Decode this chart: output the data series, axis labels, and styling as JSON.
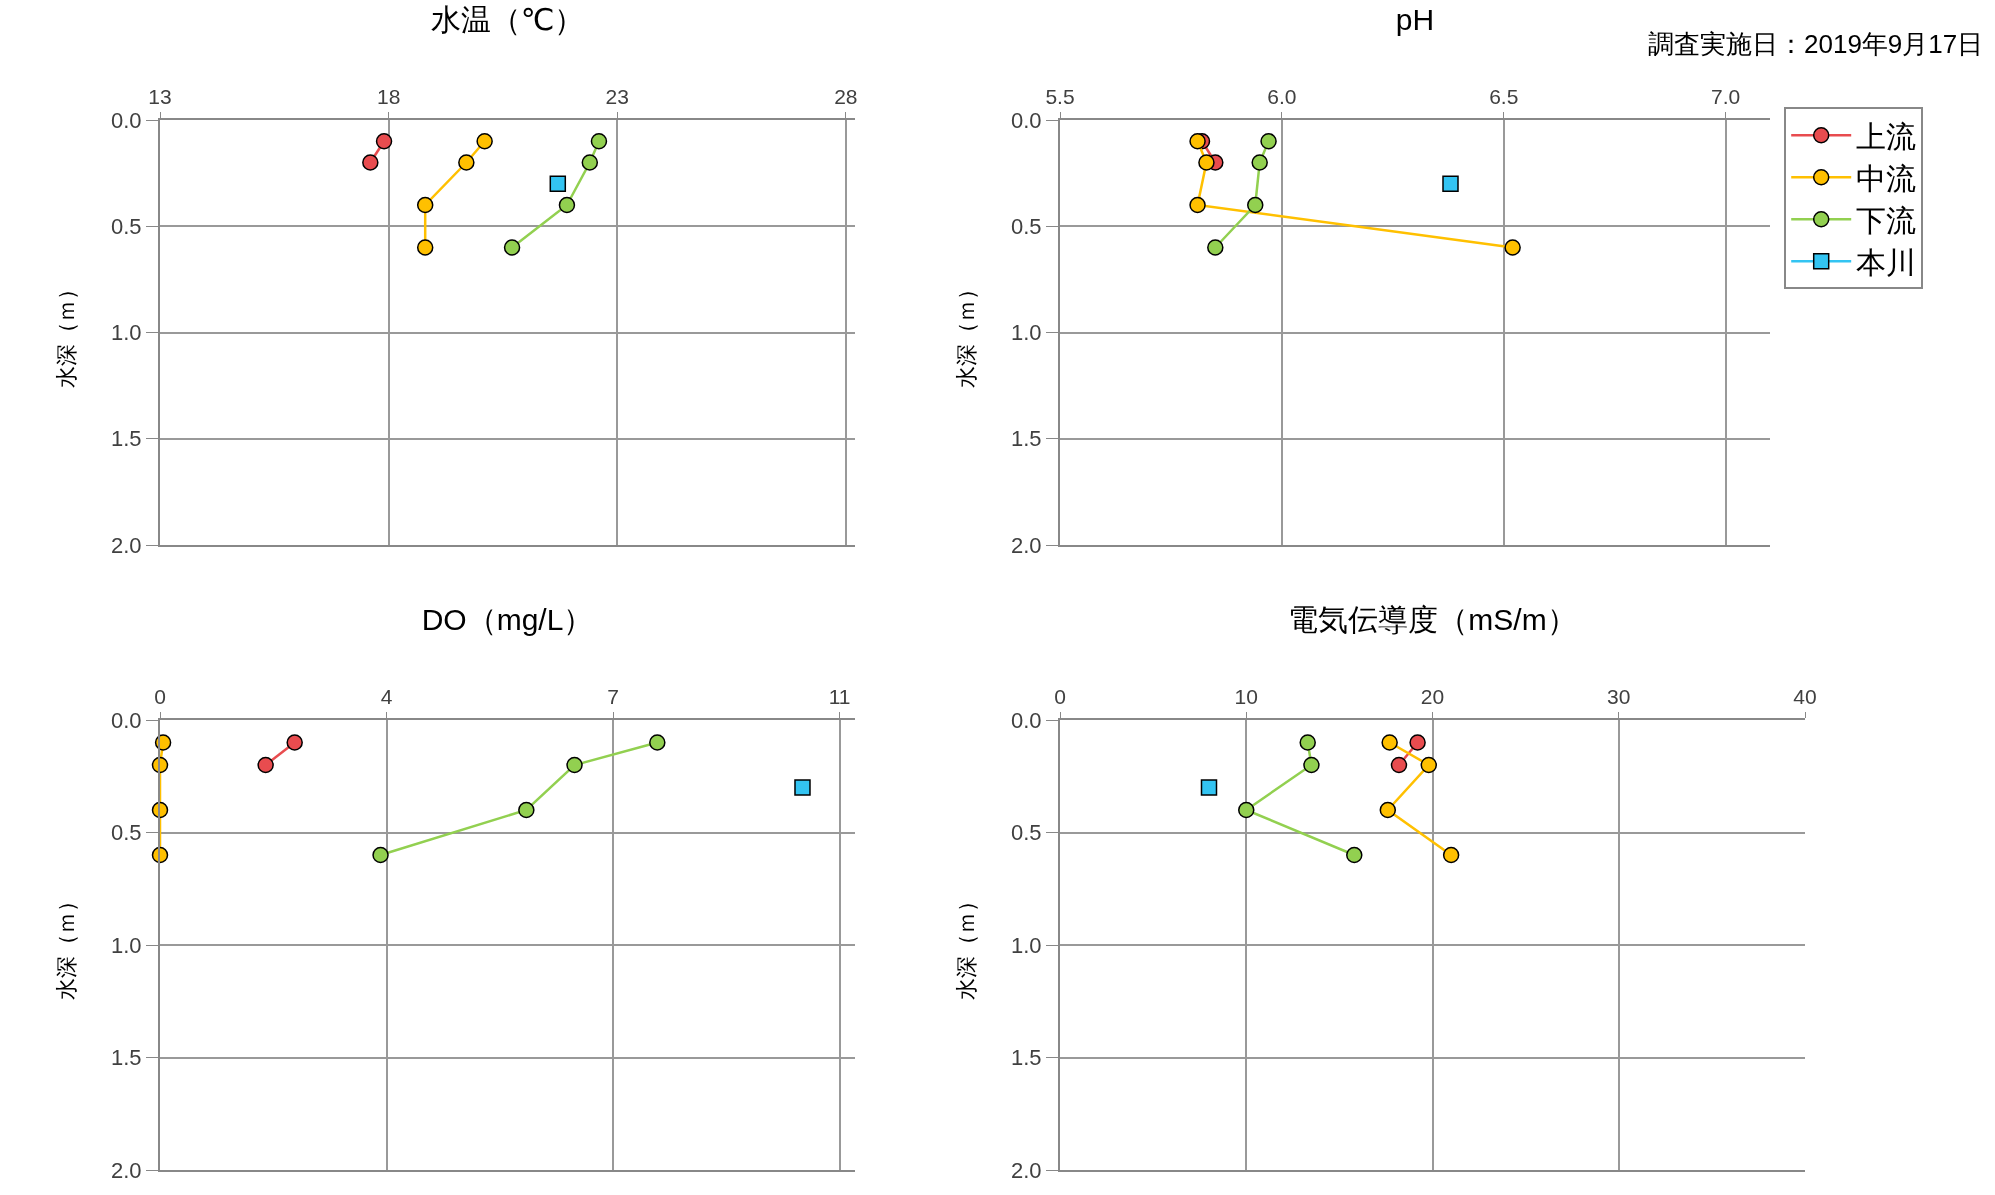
{
  "chart_data": [
    {
      "type": "line",
      "title": "水温（℃）",
      "ylabel": "水深（ｍ）",
      "xlim": [
        13,
        28.2
      ],
      "xticks": [
        13,
        18,
        23,
        28
      ],
      "ylim": [
        2,
        0
      ],
      "yticks": [
        {
          "value": 0,
          "label": "0.0"
        },
        {
          "value": 0.5,
          "label": "0.5"
        },
        {
          "value": 1,
          "label": "1.0"
        },
        {
          "value": 1.5,
          "label": "1.5"
        },
        {
          "value": 2,
          "label": "2.0"
        }
      ],
      "grid": true,
      "legend": false,
      "series": [
        {
          "color": "#e84c4f",
          "marker": "circle",
          "x": [
            17.9,
            17.6
          ],
          "values": [
            0.1,
            0.2
          ]
        },
        {
          "color": "#ffc000",
          "marker": "circle",
          "x": [
            20.1,
            19.7,
            18.8,
            18.8
          ],
          "values": [
            0.1,
            0.2,
            0.4,
            0.6
          ]
        },
        {
          "color": "#92d050",
          "marker": "circle",
          "x": [
            22.6,
            22.4,
            21.9,
            20.7
          ],
          "values": [
            0.1,
            0.2,
            0.4,
            0.6
          ]
        },
        {
          "color": "#33c4f2",
          "marker": "square",
          "x": [
            21.7
          ],
          "values": [
            0.3
          ]
        }
      ]
    },
    {
      "type": "line",
      "title": "pH",
      "ylabel": "水深（ｍ）",
      "annotations": [
        "調査実施日：2019年9月17日"
      ],
      "xlim": [
        5.5,
        7.1
      ],
      "xticks": [
        {
          "value": 5.5,
          "label": "5.5"
        },
        {
          "value": 6,
          "label": "6.0"
        },
        {
          "value": 6.5,
          "label": "6.5"
        },
        {
          "value": 7,
          "label": "7.0"
        }
      ],
      "ylim": [
        2,
        0
      ],
      "yticks": [
        {
          "value": 0,
          "label": "0.0"
        },
        {
          "value": 0.5,
          "label": "0.5"
        },
        {
          "value": 1,
          "label": "1.0"
        },
        {
          "value": 1.5,
          "label": "1.5"
        },
        {
          "value": 2,
          "label": "2.0"
        }
      ],
      "grid": true,
      "legend": "right",
      "series": [
        {
          "name": "上流",
          "color": "#e84c4f",
          "marker": "circle",
          "x": [
            5.82,
            5.85
          ],
          "values": [
            0.1,
            0.2
          ]
        },
        {
          "name": "中流",
          "color": "#ffc000",
          "marker": "circle",
          "x": [
            5.81,
            5.83,
            5.81,
            6.52
          ],
          "values": [
            0.1,
            0.2,
            0.4,
            0.6
          ]
        },
        {
          "name": "下流",
          "color": "#92d050",
          "marker": "circle",
          "x": [
            5.97,
            5.95,
            5.94,
            5.85
          ],
          "values": [
            0.1,
            0.2,
            0.4,
            0.6
          ]
        },
        {
          "name": "本川",
          "color": "#33c4f2",
          "marker": "square",
          "x": [
            6.38
          ],
          "values": [
            0.3
          ]
        }
      ]
    },
    {
      "type": "line",
      "title": "DO（mg/L）",
      "ylabel": "水深（ｍ）",
      "xlim": [
        0,
        11.25
      ],
      "xticks": [
        0,
        {
          "value": 3.667,
          "label": "4"
        },
        {
          "value": 7.333,
          "label": "7"
        },
        11
      ],
      "ylim": [
        2,
        0
      ],
      "yticks": [
        {
          "value": 0,
          "label": "0.0"
        },
        {
          "value": 0.5,
          "label": "0.5"
        },
        {
          "value": 1,
          "label": "1.0"
        },
        {
          "value": 1.5,
          "label": "1.5"
        },
        {
          "value": 2,
          "label": "2.0"
        }
      ],
      "grid": true,
      "legend": false,
      "series": [
        {
          "color": "#e84c4f",
          "marker": "circle",
          "x": [
            2.18,
            1.71
          ],
          "values": [
            0.1,
            0.2
          ]
        },
        {
          "color": "#ffc000",
          "marker": "circle",
          "x": [
            0.05,
            0,
            0,
            0
          ],
          "values": [
            0.1,
            0.2,
            0.4,
            0.6
          ]
        },
        {
          "color": "#92d050",
          "marker": "circle",
          "x": [
            8.05,
            6.71,
            5.93,
            3.57
          ],
          "values": [
            0.1,
            0.2,
            0.4,
            0.6
          ]
        },
        {
          "color": "#33c4f2",
          "marker": "square",
          "x": [
            10.4
          ],
          "values": [
            0.3
          ]
        }
      ]
    },
    {
      "type": "line",
      "title": "電気伝導度（mS/m）",
      "ylabel": "水深（ｍ）",
      "xlim": [
        0,
        40
      ],
      "xticks": [
        0,
        10,
        20,
        30,
        40
      ],
      "ylim": [
        2,
        0
      ],
      "yticks": [
        {
          "value": 0,
          "label": "0.0"
        },
        {
          "value": 0.5,
          "label": "0.5"
        },
        {
          "value": 1,
          "label": "1.0"
        },
        {
          "value": 1.5,
          "label": "1.5"
        },
        {
          "value": 2,
          "label": "2.0"
        }
      ],
      "grid": true,
      "legend": false,
      "series": [
        {
          "color": "#e84c4f",
          "marker": "circle",
          "x": [
            19.2,
            18.2
          ],
          "values": [
            0.1,
            0.2
          ]
        },
        {
          "color": "#ffc000",
          "marker": "circle",
          "x": [
            17.7,
            19.8,
            17.6,
            21.0
          ],
          "values": [
            0.1,
            0.2,
            0.4,
            0.6
          ]
        },
        {
          "color": "#92d050",
          "marker": "circle",
          "x": [
            13.3,
            13.5,
            10.0,
            15.8
          ],
          "values": [
            0.1,
            0.2,
            0.4,
            0.6
          ]
        },
        {
          "color": "#33c4f2",
          "marker": "square",
          "x": [
            8.0
          ],
          "values": [
            0.3
          ]
        }
      ]
    }
  ]
}
